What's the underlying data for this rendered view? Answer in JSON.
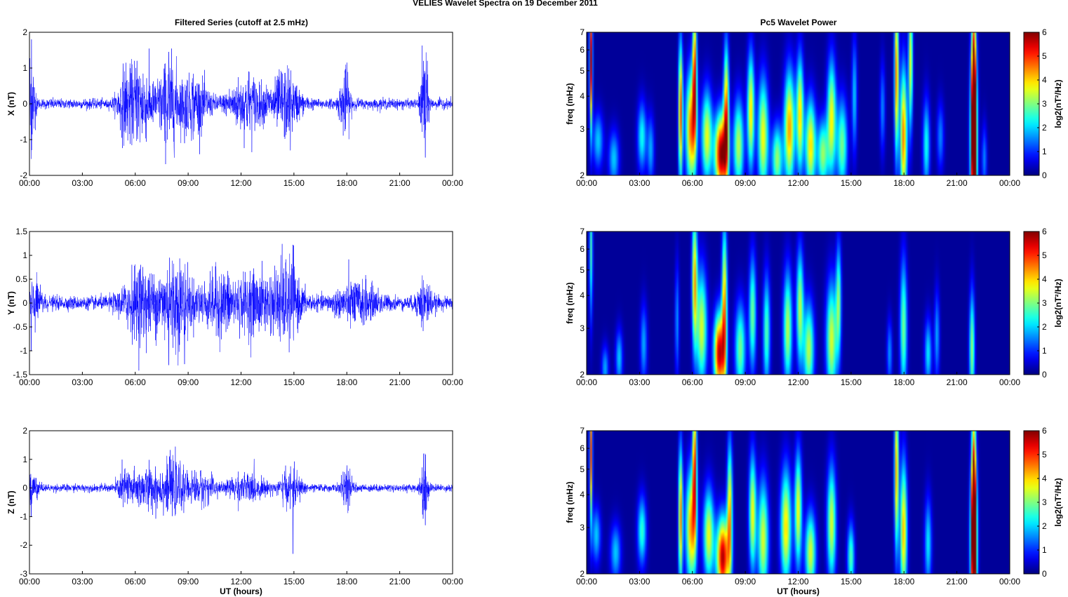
{
  "figure_title": "VELIES Wavelet Spectra on 19 December  2011",
  "left_title": "Filtered Series (cutoff at 2.5 mHz)",
  "right_title": "Pc5 Wavelet Power",
  "colors": {
    "series": "#0000ff",
    "axis": "#000000",
    "background": "#ffffff"
  },
  "chart_data": [
    {
      "type": "line",
      "title": "Filtered Series (cutoff at 2.5 mHz)",
      "xlabel": "",
      "ylabel": "X (nT)",
      "xlim": [
        0,
        24
      ],
      "ylim": [
        -2,
        2
      ],
      "xticks": [
        "00:00",
        "03:00",
        "06:00",
        "09:00",
        "12:00",
        "15:00",
        "18:00",
        "21:00",
        "00:00"
      ],
      "yticks": [
        "-2",
        "-1",
        "0",
        "1",
        "2"
      ],
      "series": [
        {
          "color": "#0000ff",
          "baseline_amplitude": 0.12,
          "bursts": [
            {
              "t": 0.1,
              "w": 0.2,
              "a": 1.5
            },
            {
              "t": 5.4,
              "w": 0.4,
              "a": 0.6
            },
            {
              "t": 6.3,
              "w": 0.8,
              "a": 0.9
            },
            {
              "t": 7.9,
              "w": 0.6,
              "a": 1.0
            },
            {
              "t": 9.3,
              "w": 0.8,
              "a": 0.7
            },
            {
              "t": 12.3,
              "w": 1.0,
              "a": 0.7
            },
            {
              "t": 14.5,
              "w": 0.8,
              "a": 0.8
            },
            {
              "t": 17.9,
              "w": 0.3,
              "a": 0.8
            },
            {
              "t": 22.4,
              "w": 0.2,
              "a": 1.4
            }
          ],
          "spikes": [
            {
              "t": 0.12,
              "v": 1.8
            },
            {
              "t": 7.9,
              "v": 1.45
            },
            {
              "t": 14.8,
              "v": -1.3
            },
            {
              "t": 22.45,
              "v": -1.5
            },
            {
              "t": 22.35,
              "v": 1.2
            },
            {
              "t": 18.0,
              "v": 1.15
            },
            {
              "t": 6.1,
              "v": 1.2
            },
            {
              "t": 8.8,
              "v": -1.1
            }
          ]
        }
      ]
    },
    {
      "type": "line",
      "title": "",
      "xlabel": "",
      "ylabel": "Y (nT)",
      "xlim": [
        0,
        24
      ],
      "ylim": [
        -1.5,
        1.5
      ],
      "xticks": [
        "00:00",
        "03:00",
        "06:00",
        "09:00",
        "12:00",
        "15:00",
        "18:00",
        "21:00",
        "00:00"
      ],
      "yticks": [
        "-1.5",
        "-1",
        "-0.5",
        "0",
        "0.5",
        "1",
        "1.5"
      ],
      "series": [
        {
          "color": "#0000ff",
          "baseline_amplitude": 0.12,
          "bursts": [
            {
              "t": 0.3,
              "w": 0.4,
              "a": 0.35
            },
            {
              "t": 6.3,
              "w": 1.0,
              "a": 0.6
            },
            {
              "t": 8.3,
              "w": 1.0,
              "a": 0.7
            },
            {
              "t": 10.8,
              "w": 1.0,
              "a": 0.5
            },
            {
              "t": 12.8,
              "w": 1.0,
              "a": 0.5
            },
            {
              "t": 14.6,
              "w": 0.8,
              "a": 0.7
            },
            {
              "t": 18.5,
              "w": 1.2,
              "a": 0.35
            },
            {
              "t": 22.4,
              "w": 0.4,
              "a": 0.4
            }
          ],
          "spikes": [
            {
              "t": 0.1,
              "v": -1.0
            },
            {
              "t": 7.9,
              "v": -1.3
            },
            {
              "t": 8.8,
              "v": -1.28
            },
            {
              "t": 14.95,
              "v": 1.22
            },
            {
              "t": 7.95,
              "v": 0.95
            },
            {
              "t": 6.3,
              "v": 0.8
            }
          ]
        }
      ]
    },
    {
      "type": "line",
      "title": "",
      "xlabel": "UT (hours)",
      "ylabel": "Z (nT)",
      "xlim": [
        0,
        24
      ],
      "ylim": [
        -3,
        2
      ],
      "xticks": [
        "00:00",
        "03:00",
        "06:00",
        "09:00",
        "12:00",
        "15:00",
        "18:00",
        "21:00",
        "00:00"
      ],
      "yticks": [
        "-3",
        "-2",
        "-1",
        "0",
        "1",
        "2"
      ],
      "series": [
        {
          "color": "#0000ff",
          "baseline_amplitude": 0.11,
          "bursts": [
            {
              "t": 0.2,
              "w": 0.3,
              "a": 0.5
            },
            {
              "t": 5.4,
              "w": 0.4,
              "a": 0.5
            },
            {
              "t": 6.6,
              "w": 0.9,
              "a": 0.6
            },
            {
              "t": 8.2,
              "w": 0.8,
              "a": 0.7
            },
            {
              "t": 9.8,
              "w": 0.8,
              "a": 0.4
            },
            {
              "t": 12.3,
              "w": 1.0,
              "a": 0.4
            },
            {
              "t": 14.8,
              "w": 0.6,
              "a": 0.5
            },
            {
              "t": 18.0,
              "w": 0.3,
              "a": 0.6
            },
            {
              "t": 22.4,
              "w": 0.2,
              "a": 1.1
            }
          ],
          "spikes": [
            {
              "t": 14.95,
              "v": -2.3
            },
            {
              "t": 22.35,
              "v": 1.2
            },
            {
              "t": 22.45,
              "v": -1.3
            },
            {
              "t": 0.1,
              "v": -1.0
            },
            {
              "t": 7.95,
              "v": 1.1
            }
          ]
        }
      ]
    },
    {
      "type": "heatmap",
      "title": "Pc5 Wavelet Power",
      "xlabel": "",
      "ylabel": "freq (mHz)",
      "colorbar_label": "log2(nT²/Hz)",
      "xlim": [
        0,
        24
      ],
      "ylim": [
        2,
        7
      ],
      "yscale": "log",
      "clim": [
        0,
        6
      ],
      "xticks": [
        "00:00",
        "03:00",
        "06:00",
        "09:00",
        "12:00",
        "15:00",
        "18:00",
        "21:00",
        "00:00"
      ],
      "yticks": [
        "2",
        "3",
        "4",
        "5",
        "6",
        "7"
      ],
      "cticks": [
        "0",
        "1",
        "2",
        "3",
        "4",
        "5",
        "6"
      ],
      "blobs": [
        {
          "t": 0.2,
          "f": 5.5,
          "v": 5.5,
          "tw": 0.08,
          "fw": 0.6
        },
        {
          "t": 0.6,
          "f": 2.7,
          "v": 1.8,
          "tw": 0.3,
          "fw": 0.25
        },
        {
          "t": 1.5,
          "f": 2.3,
          "v": 1.8,
          "tw": 0.3,
          "fw": 0.25
        },
        {
          "t": 3.1,
          "f": 2.8,
          "v": 2.2,
          "tw": 0.25,
          "fw": 0.3
        },
        {
          "t": 3.6,
          "f": 2.5,
          "v": 1.6,
          "tw": 0.2,
          "fw": 0.3
        },
        {
          "t": 5.3,
          "f": 3.5,
          "v": 4.8,
          "tw": 0.12,
          "fw": 0.6
        },
        {
          "t": 5.9,
          "f": 3.0,
          "v": 4.5,
          "tw": 0.3,
          "fw": 0.5
        },
        {
          "t": 6.1,
          "f": 5.0,
          "v": 4.5,
          "tw": 0.12,
          "fw": 0.6
        },
        {
          "t": 6.8,
          "f": 2.8,
          "v": 3.5,
          "tw": 0.3,
          "fw": 0.4
        },
        {
          "t": 7.6,
          "f": 2.4,
          "v": 5.8,
          "tw": 0.35,
          "fw": 0.35
        },
        {
          "t": 7.9,
          "f": 3.4,
          "v": 4.5,
          "tw": 0.15,
          "fw": 0.6
        },
        {
          "t": 8.6,
          "f": 2.6,
          "v": 3.2,
          "tw": 0.3,
          "fw": 0.4
        },
        {
          "t": 9.3,
          "f": 3.5,
          "v": 3.8,
          "tw": 0.2,
          "fw": 0.5
        },
        {
          "t": 10.0,
          "f": 2.8,
          "v": 3.6,
          "tw": 0.3,
          "fw": 0.5
        },
        {
          "t": 10.8,
          "f": 2.3,
          "v": 3.0,
          "tw": 0.3,
          "fw": 0.3
        },
        {
          "t": 11.5,
          "f": 3.0,
          "v": 4.2,
          "tw": 0.3,
          "fw": 0.5
        },
        {
          "t": 12.1,
          "f": 3.4,
          "v": 3.8,
          "tw": 0.2,
          "fw": 0.5
        },
        {
          "t": 12.7,
          "f": 2.6,
          "v": 3.8,
          "tw": 0.3,
          "fw": 0.4
        },
        {
          "t": 13.4,
          "f": 2.4,
          "v": 3.0,
          "tw": 0.3,
          "fw": 0.3
        },
        {
          "t": 13.9,
          "f": 3.3,
          "v": 3.6,
          "tw": 0.25,
          "fw": 0.5
        },
        {
          "t": 14.5,
          "f": 2.6,
          "v": 2.8,
          "tw": 0.3,
          "fw": 0.4
        },
        {
          "t": 15.2,
          "f": 4.0,
          "v": 1.8,
          "tw": 0.15,
          "fw": 0.5
        },
        {
          "t": 16.8,
          "f": 3.6,
          "v": 1.4,
          "tw": 0.15,
          "fw": 0.4
        },
        {
          "t": 17.6,
          "f": 4.8,
          "v": 4.5,
          "tw": 0.12,
          "fw": 0.7
        },
        {
          "t": 18.0,
          "f": 2.8,
          "v": 4.4,
          "tw": 0.2,
          "fw": 0.6
        },
        {
          "t": 18.4,
          "f": 5.5,
          "v": 3.6,
          "tw": 0.12,
          "fw": 0.6
        },
        {
          "t": 19.3,
          "f": 2.6,
          "v": 2.2,
          "tw": 0.2,
          "fw": 0.4
        },
        {
          "t": 20.1,
          "f": 2.8,
          "v": 1.4,
          "tw": 0.2,
          "fw": 0.3
        },
        {
          "t": 22.0,
          "f": 2.7,
          "v": 6.5,
          "tw": 0.18,
          "fw": 0.8
        },
        {
          "t": 22.0,
          "f": 4.0,
          "v": 4.4,
          "tw": 0.12,
          "fw": 0.9
        },
        {
          "t": 22.6,
          "f": 2.3,
          "v": 1.4,
          "tw": 0.15,
          "fw": 0.3
        }
      ]
    },
    {
      "type": "heatmap",
      "title": "",
      "xlabel": "",
      "ylabel": "freq (mHz)",
      "colorbar_label": "log2(nT²/Hz)",
      "xlim": [
        0,
        24
      ],
      "ylim": [
        2,
        7
      ],
      "yscale": "log",
      "clim": [
        0,
        6
      ],
      "xticks": [
        "00:00",
        "03:00",
        "06:00",
        "09:00",
        "12:00",
        "15:00",
        "18:00",
        "21:00",
        "00:00"
      ],
      "yticks": [
        "2",
        "3",
        "4",
        "5",
        "6",
        "7"
      ],
      "cticks": [
        "0",
        "1",
        "2",
        "3",
        "4",
        "5",
        "6"
      ],
      "blobs": [
        {
          "t": 0.2,
          "f": 6.0,
          "v": 2.5,
          "tw": 0.1,
          "fw": 0.6
        },
        {
          "t": 1.0,
          "f": 2.1,
          "v": 1.6,
          "tw": 0.2,
          "fw": 0.2
        },
        {
          "t": 1.8,
          "f": 2.3,
          "v": 1.8,
          "tw": 0.2,
          "fw": 0.25
        },
        {
          "t": 3.2,
          "f": 2.6,
          "v": 1.6,
          "tw": 0.2,
          "fw": 0.35
        },
        {
          "t": 5.1,
          "f": 3.2,
          "v": 1.5,
          "tw": 0.12,
          "fw": 0.5
        },
        {
          "t": 6.1,
          "f": 4.6,
          "v": 4.0,
          "tw": 0.15,
          "fw": 0.6
        },
        {
          "t": 6.5,
          "f": 3.0,
          "v": 3.4,
          "tw": 0.3,
          "fw": 0.5
        },
        {
          "t": 7.5,
          "f": 2.4,
          "v": 5.5,
          "tw": 0.3,
          "fw": 0.35
        },
        {
          "t": 7.8,
          "f": 3.6,
          "v": 4.2,
          "tw": 0.15,
          "fw": 0.7
        },
        {
          "t": 8.7,
          "f": 2.5,
          "v": 2.8,
          "tw": 0.3,
          "fw": 0.4
        },
        {
          "t": 9.4,
          "f": 3.4,
          "v": 2.8,
          "tw": 0.2,
          "fw": 0.5
        },
        {
          "t": 10.2,
          "f": 2.9,
          "v": 2.6,
          "tw": 0.2,
          "fw": 0.5
        },
        {
          "t": 11.4,
          "f": 3.0,
          "v": 3.2,
          "tw": 0.25,
          "fw": 0.5
        },
        {
          "t": 12.1,
          "f": 3.6,
          "v": 3.2,
          "tw": 0.2,
          "fw": 0.5
        },
        {
          "t": 12.6,
          "f": 2.5,
          "v": 3.2,
          "tw": 0.3,
          "fw": 0.4
        },
        {
          "t": 13.9,
          "f": 2.7,
          "v": 3.4,
          "tw": 0.3,
          "fw": 0.5
        },
        {
          "t": 14.3,
          "f": 3.8,
          "v": 2.8,
          "tw": 0.15,
          "fw": 0.5
        },
        {
          "t": 17.2,
          "f": 2.4,
          "v": 1.5,
          "tw": 0.15,
          "fw": 0.3
        },
        {
          "t": 18.0,
          "f": 3.0,
          "v": 2.8,
          "tw": 0.2,
          "fw": 0.6
        },
        {
          "t": 19.4,
          "f": 2.4,
          "v": 2.0,
          "tw": 0.2,
          "fw": 0.3
        },
        {
          "t": 19.9,
          "f": 2.8,
          "v": 1.6,
          "tw": 0.15,
          "fw": 0.4
        },
        {
          "t": 21.9,
          "f": 2.5,
          "v": 3.0,
          "tw": 0.15,
          "fw": 0.5
        }
      ]
    },
    {
      "type": "heatmap",
      "title": "",
      "xlabel": "UT (hours)",
      "ylabel": "freq (mHz)",
      "colorbar_label": "log2(nT²/Hz)",
      "xlim": [
        0,
        24
      ],
      "ylim": [
        2,
        7
      ],
      "yscale": "log",
      "clim": [
        0,
        6
      ],
      "xticks": [
        "00:00",
        "03:00",
        "06:00",
        "09:00",
        "12:00",
        "15:00",
        "18:00",
        "21:00",
        "00:00"
      ],
      "yticks": [
        "2",
        "3",
        "4",
        "5",
        "6",
        "7"
      ],
      "cticks": [
        "0",
        "1",
        "2",
        "3",
        "4",
        "5",
        "6"
      ],
      "blobs": [
        {
          "t": 0.2,
          "f": 5.8,
          "v": 4.6,
          "tw": 0.08,
          "fw": 0.6
        },
        {
          "t": 0.5,
          "f": 2.8,
          "v": 1.8,
          "tw": 0.25,
          "fw": 0.25
        },
        {
          "t": 1.6,
          "f": 2.4,
          "v": 1.8,
          "tw": 0.3,
          "fw": 0.25
        },
        {
          "t": 3.1,
          "f": 2.9,
          "v": 2.4,
          "tw": 0.25,
          "fw": 0.3
        },
        {
          "t": 5.3,
          "f": 3.3,
          "v": 4.4,
          "tw": 0.12,
          "fw": 0.6
        },
        {
          "t": 5.9,
          "f": 3.0,
          "v": 4.2,
          "tw": 0.3,
          "fw": 0.5
        },
        {
          "t": 6.1,
          "f": 5.2,
          "v": 4.6,
          "tw": 0.12,
          "fw": 0.6
        },
        {
          "t": 6.9,
          "f": 2.8,
          "v": 3.5,
          "tw": 0.3,
          "fw": 0.4
        },
        {
          "t": 7.7,
          "f": 2.3,
          "v": 5.6,
          "tw": 0.35,
          "fw": 0.35
        },
        {
          "t": 8.1,
          "f": 3.4,
          "v": 4.0,
          "tw": 0.15,
          "fw": 0.6
        },
        {
          "t": 9.4,
          "f": 3.4,
          "v": 3.6,
          "tw": 0.2,
          "fw": 0.5
        },
        {
          "t": 10.0,
          "f": 2.7,
          "v": 3.4,
          "tw": 0.3,
          "fw": 0.5
        },
        {
          "t": 11.3,
          "f": 3.0,
          "v": 3.8,
          "tw": 0.3,
          "fw": 0.5
        },
        {
          "t": 12.0,
          "f": 3.5,
          "v": 3.6,
          "tw": 0.2,
          "fw": 0.5
        },
        {
          "t": 12.7,
          "f": 2.4,
          "v": 3.4,
          "tw": 0.3,
          "fw": 0.35
        },
        {
          "t": 13.9,
          "f": 3.1,
          "v": 3.4,
          "tw": 0.25,
          "fw": 0.5
        },
        {
          "t": 15.0,
          "f": 2.3,
          "v": 2.6,
          "tw": 0.2,
          "fw": 0.3
        },
        {
          "t": 17.6,
          "f": 4.9,
          "v": 4.2,
          "tw": 0.12,
          "fw": 0.7
        },
        {
          "t": 18.0,
          "f": 2.9,
          "v": 4.0,
          "tw": 0.2,
          "fw": 0.6
        },
        {
          "t": 19.4,
          "f": 2.6,
          "v": 2.0,
          "tw": 0.2,
          "fw": 0.4
        },
        {
          "t": 22.0,
          "f": 2.6,
          "v": 6.3,
          "tw": 0.18,
          "fw": 0.7
        },
        {
          "t": 22.0,
          "f": 3.9,
          "v": 4.2,
          "tw": 0.12,
          "fw": 0.9
        }
      ]
    }
  ]
}
